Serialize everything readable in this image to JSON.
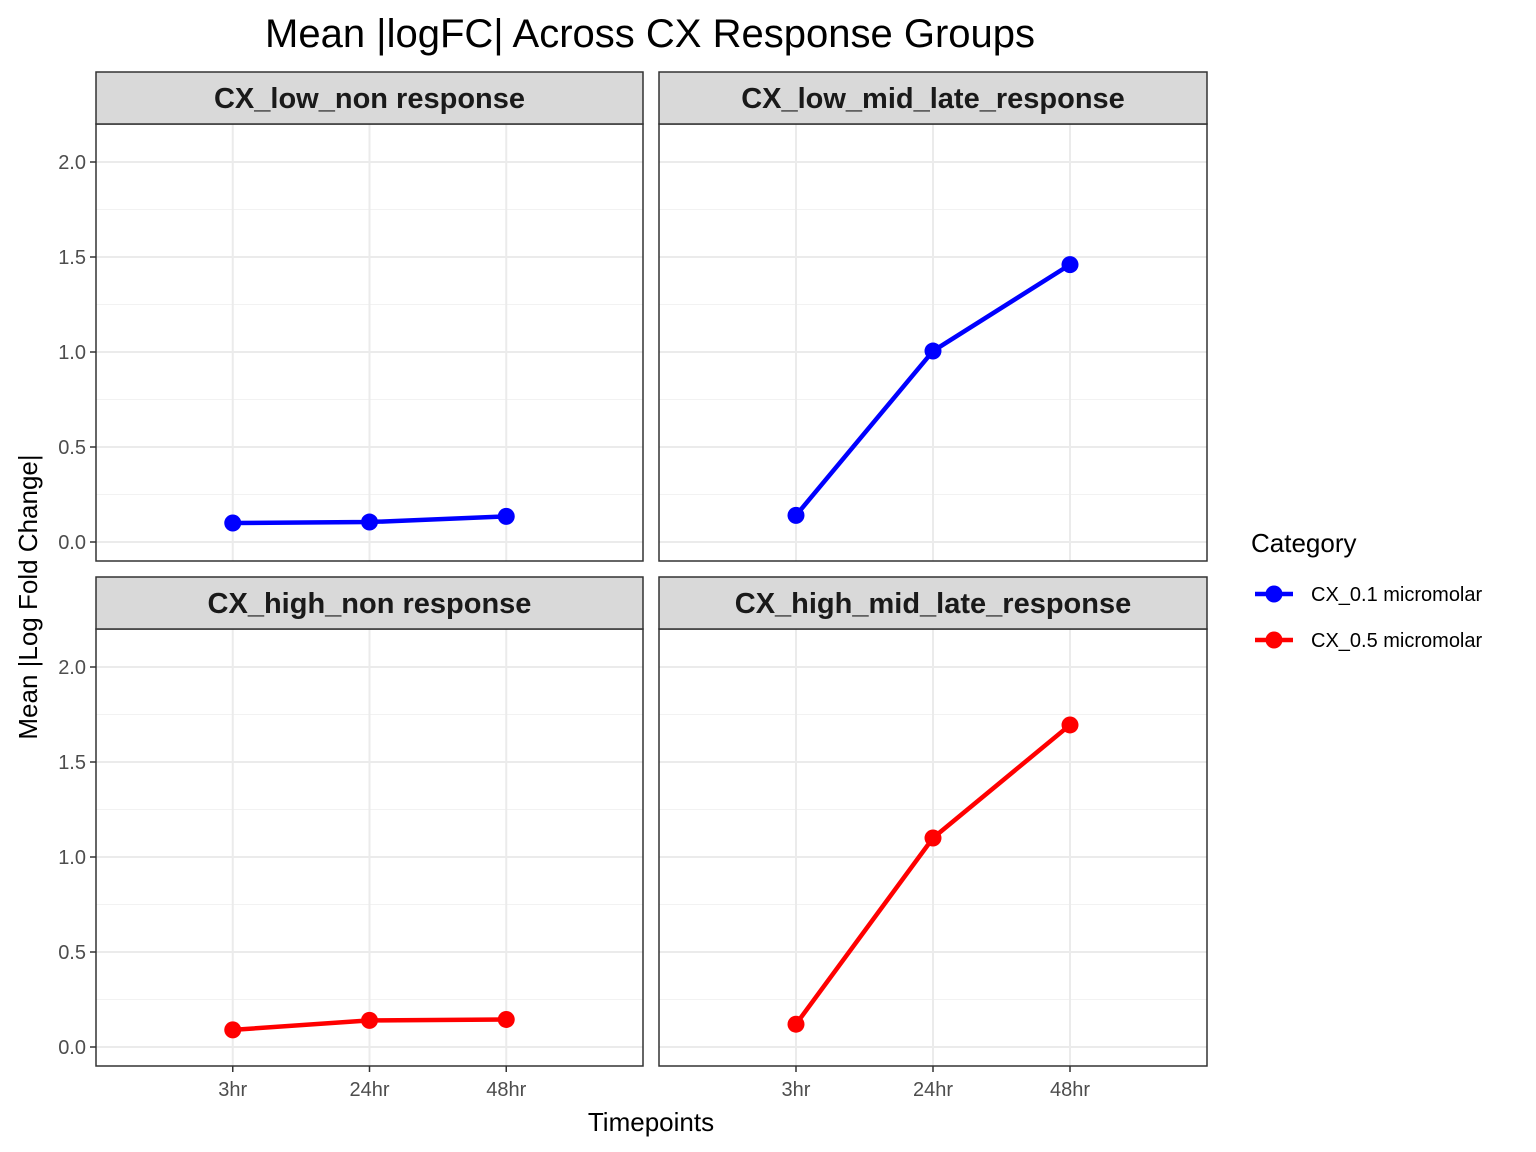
{
  "chart_data": {
    "type": "line",
    "title": "Mean |logFC| Across CX Response Groups",
    "xlabel": "Timepoints",
    "ylabel": "Mean |Log Fold Change|",
    "x": [
      "3hr",
      "24hr",
      "48hr"
    ],
    "ylim": [
      -0.1,
      2.2
    ],
    "yticks": [
      "0.0",
      "0.5",
      "1.0",
      "1.5",
      "2.0"
    ],
    "grid": true,
    "legend": {
      "title": "Category",
      "placement": "right",
      "entries": [
        {
          "name": "CX_0.1 micromolar",
          "color": "#0000FF"
        },
        {
          "name": "CX_0.5 micromolar",
          "color": "#FF0000"
        }
      ]
    },
    "panels": [
      {
        "label": "CX_low_non response",
        "series": "CX_0.1 micromolar",
        "color": "#0000FF",
        "values": [
          0.1,
          0.105,
          0.135
        ]
      },
      {
        "label": "CX_low_mid_late_response",
        "series": "CX_0.1 micromolar",
        "color": "#0000FF",
        "values": [
          0.14,
          1.005,
          1.46
        ]
      },
      {
        "label": "CX_high_non response",
        "series": "CX_0.5 micromolar",
        "color": "#FF0000",
        "values": [
          0.09,
          0.14,
          0.145
        ]
      },
      {
        "label": "CX_high_mid_late_response",
        "series": "CX_0.5 micromolar",
        "color": "#FF0000",
        "values": [
          0.12,
          1.1,
          1.695
        ]
      }
    ]
  }
}
